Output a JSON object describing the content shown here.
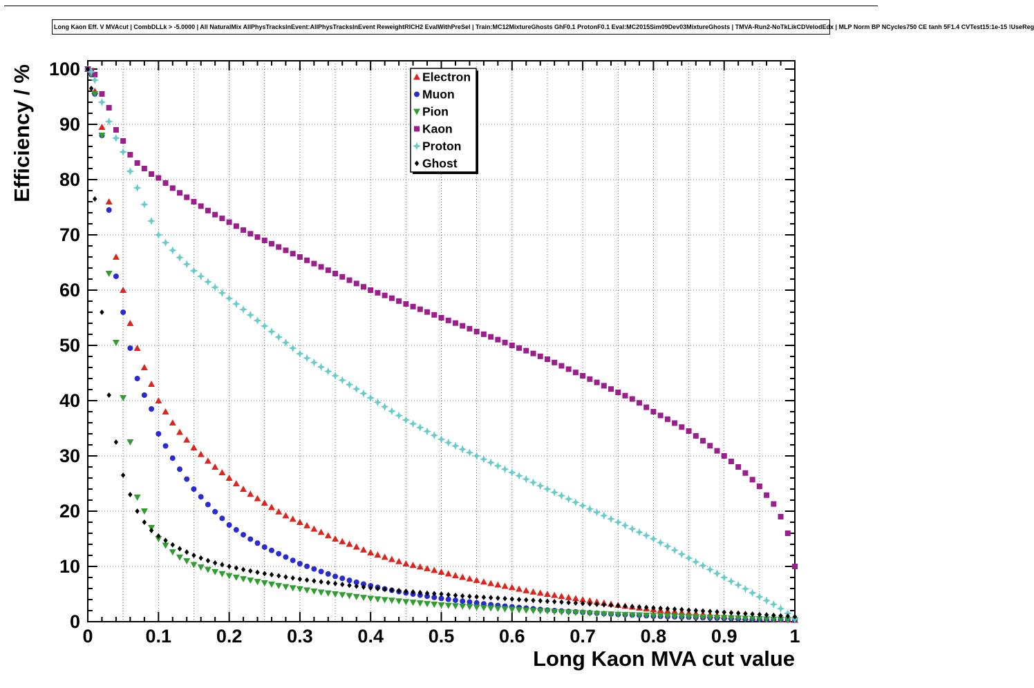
{
  "title": "Long Kaon Eff. V MVAcut | CombDLLk > -5.0000 | All NaturalMix AllPhysTracksInEvent:AllPhysTracksInEvent ReweightRICH2 EvalWithPreSel | Train:MC12MixtureGhosts GhF0.1 ProtonF0.1 Eval:MC2015Sim09Dev03MixtureGhosts | TMVA-Run2-NoTkLikCDVelodEdx | MLP Norm BP NCycles750 CE tanh 5F1.4 CVTest15:1e-15 !UseReg",
  "chart_data": {
    "type": "scatter",
    "title": "",
    "xlabel": "Long Kaon MVA cut value",
    "ylabel": "Efficiency / %",
    "xlim": [
      0,
      1
    ],
    "ylim": [
      0,
      101.5
    ],
    "grid": "dotted",
    "legend_position": "top-center",
    "x_tick_labels": [
      "0",
      "0.1",
      "0.2",
      "0.3",
      "0.4",
      "0.5",
      "0.6",
      "0.7",
      "0.8",
      "0.9",
      "1"
    ],
    "y_tick_labels": [
      "0",
      "10",
      "20",
      "30",
      "40",
      "50",
      "60",
      "70",
      "80",
      "90",
      "100"
    ],
    "x": [
      0,
      0.005,
      0.01,
      0.02,
      0.03,
      0.04,
      0.05,
      0.06,
      0.07,
      0.08,
      0.09,
      0.1,
      0.125,
      0.15,
      0.175,
      0.2,
      0.225,
      0.25,
      0.275,
      0.3,
      0.325,
      0.35,
      0.375,
      0.4,
      0.425,
      0.45,
      0.475,
      0.5,
      0.525,
      0.55,
      0.575,
      0.6,
      0.625,
      0.65,
      0.675,
      0.7,
      0.725,
      0.75,
      0.775,
      0.8,
      0.825,
      0.85,
      0.875,
      0.9,
      0.925,
      0.95,
      0.975,
      0.99,
      1.0
    ],
    "series": [
      {
        "name": "Electron",
        "color": "#df241d",
        "marker": "triangle-up",
        "values": [
          100,
          99.5,
          96,
          89.5,
          76,
          66,
          60,
          54,
          49.5,
          46,
          43,
          40,
          35,
          31.5,
          28.5,
          26,
          23.5,
          21.5,
          19.5,
          18,
          16.5,
          15,
          13.8,
          12.5,
          11.5,
          10.5,
          9.8,
          9,
          8.2,
          7.5,
          6.8,
          6.2,
          5.5,
          5,
          4.5,
          4,
          3.5,
          3,
          2.6,
          2.2,
          1.9,
          1.6,
          1.3,
          1,
          0.8,
          0.6,
          0.4,
          0.35,
          0.3
        ]
      },
      {
        "name": "Muon",
        "color": "#2a2ad4",
        "marker": "circle",
        "values": [
          100,
          99,
          95.5,
          88,
          74.5,
          62.5,
          56,
          49.5,
          44,
          41,
          38.5,
          34,
          28.5,
          24,
          20.5,
          17.5,
          15.3,
          13.5,
          12,
          10.5,
          9.3,
          8.2,
          7.3,
          6.5,
          5.8,
          5.2,
          4.7,
          4.2,
          3.8,
          3.4,
          3,
          2.7,
          2.4,
          2.1,
          1.9,
          1.7,
          1.5,
          1.3,
          1.2,
          1,
          0.9,
          0.8,
          0.7,
          0.6,
          0.5,
          0.4,
          0.35,
          0.32,
          0.3
        ]
      },
      {
        "name": "Pion",
        "color": "#2f9e2f",
        "marker": "triangle-down",
        "values": [
          100,
          99,
          95.5,
          88,
          63,
          50.5,
          40.5,
          32.5,
          22.5,
          20,
          17,
          15,
          12,
          10.3,
          9.2,
          8.3,
          7.6,
          7,
          6.4,
          5.9,
          5.4,
          5,
          4.6,
          4.2,
          3.9,
          3.6,
          3.3,
          3,
          2.8,
          2.6,
          2.4,
          2.2,
          2,
          1.9,
          1.7,
          1.6,
          1.4,
          1.3,
          1.2,
          1.1,
          1,
          0.9,
          0.8,
          0.7,
          0.6,
          0.5,
          0.4,
          0.35,
          0.3
        ]
      },
      {
        "name": "Kaon",
        "color": "#9c1d8c",
        "marker": "square",
        "values": [
          100,
          99.7,
          99,
          95.5,
          93,
          89,
          87,
          84.5,
          83,
          82,
          81,
          80.3,
          78,
          76,
          74,
          72.3,
          70.5,
          69,
          67.5,
          66,
          64.5,
          63,
          61.5,
          60,
          58.8,
          57.5,
          56.3,
          55,
          53.8,
          52.5,
          51.3,
          50,
          48.8,
          47.5,
          46,
          44.5,
          43,
          41.5,
          40,
          38,
          36.3,
          34.5,
          32.3,
          30,
          27.5,
          24.5,
          20.5,
          16,
          10
        ]
      },
      {
        "name": "Proton",
        "color": "#66ccc9",
        "marker": "star4",
        "values": [
          100,
          99.5,
          98,
          94,
          90.5,
          87.5,
          85,
          81.5,
          78.5,
          75.5,
          72.5,
          70,
          66.5,
          63.5,
          61,
          58.5,
          56,
          53.5,
          51,
          48.5,
          46.5,
          44.5,
          42.5,
          40.5,
          38.5,
          36.5,
          34.8,
          33,
          31.5,
          30,
          28.5,
          27,
          25.5,
          24,
          22.5,
          21,
          19.5,
          18,
          16.5,
          15,
          13.3,
          11.5,
          9.8,
          8,
          6.3,
          4.5,
          2.8,
          1.5,
          0.5
        ]
      },
      {
        "name": "Ghost",
        "color": "#000000",
        "marker": "diamond",
        "values": [
          100,
          96.5,
          76.5,
          56,
          41,
          32.5,
          26.5,
          23,
          20,
          18,
          16.5,
          15.5,
          13.5,
          12,
          10.8,
          10,
          9.3,
          8.7,
          8.2,
          7.7,
          7.3,
          6.9,
          6.5,
          6.1,
          5.8,
          5.5,
          5.2,
          5,
          4.7,
          4.5,
          4.3,
          4.1,
          3.9,
          3.7,
          3.5,
          3.3,
          3.1,
          2.9,
          2.7,
          2.5,
          2.3,
          2.1,
          1.9,
          1.7,
          1.5,
          1.3,
          1.1,
          1,
          0.9
        ]
      }
    ]
  }
}
